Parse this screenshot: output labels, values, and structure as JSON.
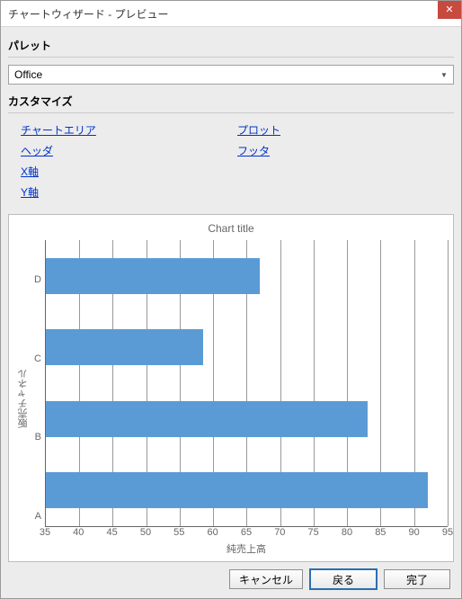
{
  "window": {
    "title": "チャートウィザード - プレビュー"
  },
  "palette": {
    "section_label": "パレット",
    "selected": "Office"
  },
  "customize": {
    "section_label": "カスタマイズ",
    "links_left": [
      "チャートエリア",
      "ヘッダ",
      "X軸",
      "Y軸"
    ],
    "links_right": [
      "プロット",
      "フッタ"
    ]
  },
  "chart": {
    "type": "bar_horizontal",
    "title": "Chart title",
    "x_axis_label": "純売上高",
    "y_axis_label": "販売チャネル",
    "categories": [
      "D",
      "C",
      "B",
      "A"
    ],
    "values": [
      67,
      58.5,
      83,
      92
    ],
    "bar_color": "#5b9bd5",
    "background_color": "#ffffff",
    "grid_color": "#999999",
    "axis_color": "#666666",
    "x_min": 35,
    "x_max": 95,
    "x_tick_step": 5,
    "tick_font_size": 11,
    "title_font_size": 12
  },
  "buttons": {
    "cancel": "キャンセル",
    "back": "戻る",
    "finish": "完了"
  }
}
